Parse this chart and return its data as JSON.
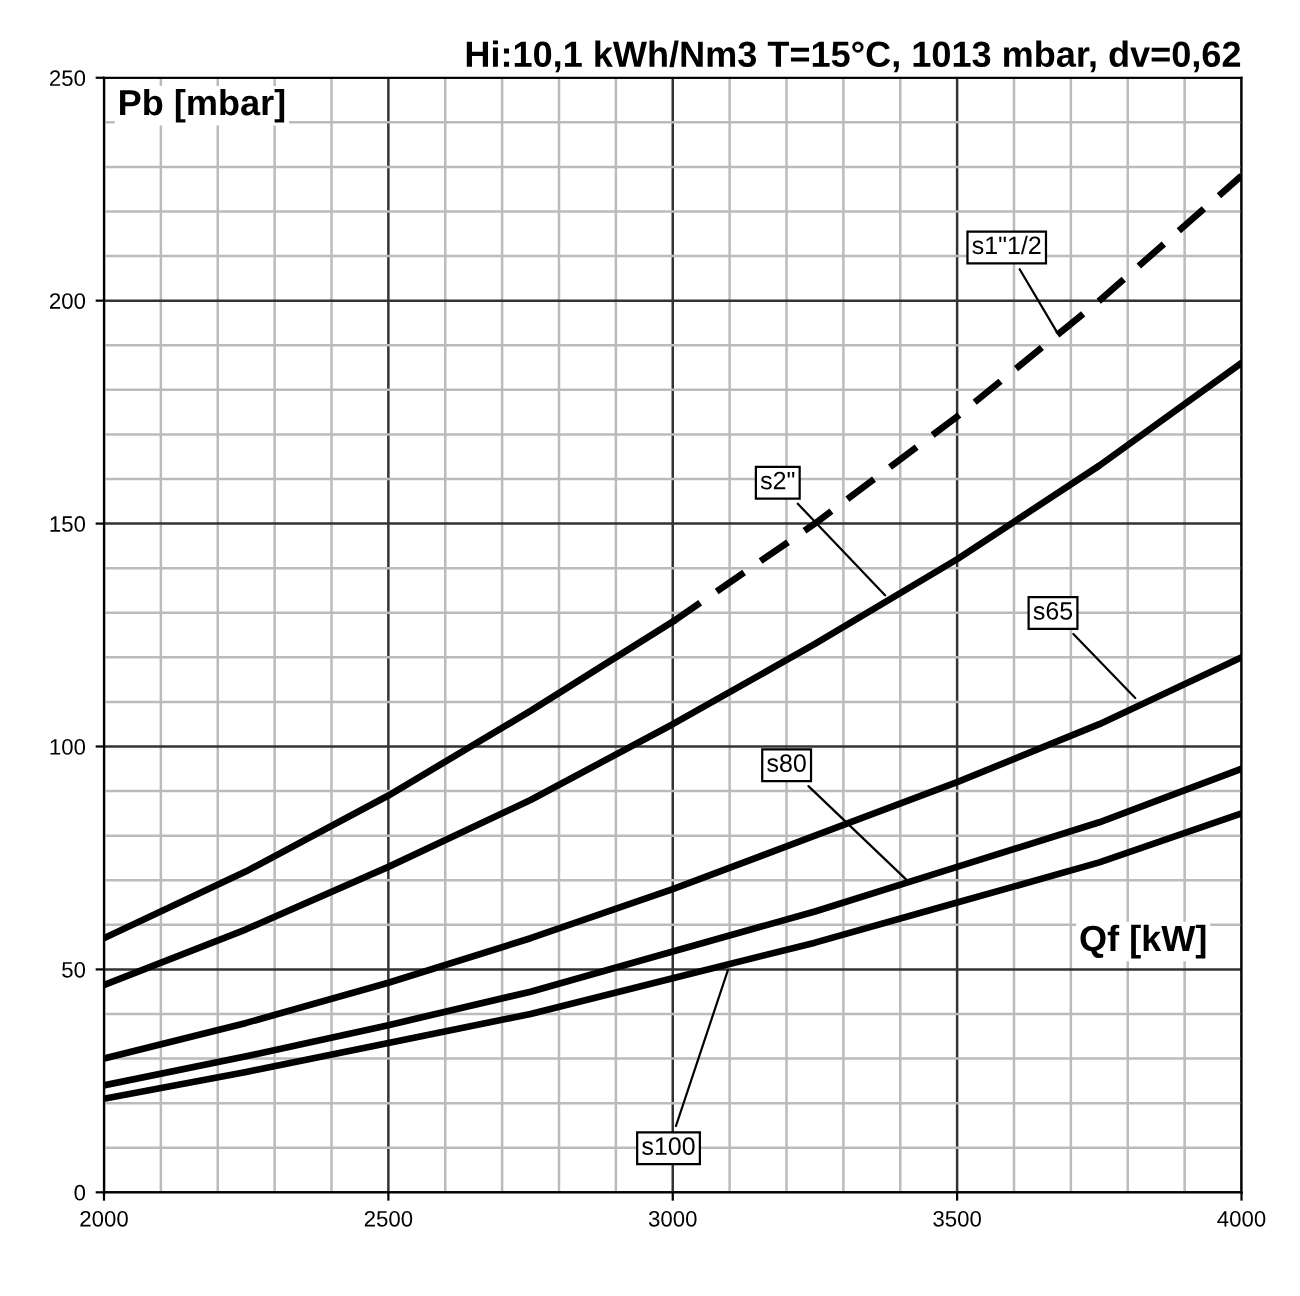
{
  "chart_data": {
    "type": "line",
    "title": "Hi:10,1 kWh/Nm3 T=15°C, 1013 mbar, dv=0,62",
    "xlabel": "Qf [kW]",
    "ylabel": "Pb [mbar]",
    "series": [
      {
        "color": "#000000",
        "line_style": "solid",
        "x": [
          2000,
          2250,
          2500,
          2750,
          3000
        ],
        "values": [
          57,
          72,
          89,
          108,
          128
        ]
      },
      {
        "color": "#000000",
        "line_style": "dashed",
        "x": [
          3000,
          3250,
          3500,
          3750,
          4000
        ],
        "values": [
          128,
          150,
          174,
          200,
          228
        ]
      },
      {
        "color": "#000000",
        "line_style": "solid",
        "x": [
          2000,
          2250,
          2500,
          2750,
          3000,
          3250,
          3500,
          3750,
          4000
        ],
        "values": [
          46.5,
          59,
          73,
          88,
          105,
          123,
          142,
          163,
          186
        ]
      },
      {
        "color": "#000000",
        "line_style": "solid",
        "x": [
          2000,
          2250,
          2500,
          2750,
          3000,
          3250,
          3500,
          3750,
          4000
        ],
        "values": [
          30,
          38,
          47,
          57,
          68,
          80,
          92,
          105,
          120
        ]
      },
      {
        "color": "#000000",
        "line_style": "solid",
        "x": [
          2000,
          2250,
          2500,
          2750,
          3000,
          3250,
          3500,
          3750,
          4000
        ],
        "values": [
          24,
          30.5,
          37.5,
          45,
          54,
          63,
          73,
          83,
          95
        ]
      },
      {
        "color": "#000000",
        "line_style": "solid",
        "x": [
          2000,
          2250,
          2500,
          2750,
          3000,
          3250,
          3500,
          3750,
          4000
        ],
        "values": [
          21,
          27,
          33.5,
          40,
          48,
          56,
          65,
          74,
          85
        ]
      }
    ],
    "annotations": [
      {
        "text": "s1\"1/2",
        "x": 3680,
        "y": 192
      },
      {
        "text": "s2\"",
        "x": 3380,
        "y": 133
      },
      {
        "text": "s65",
        "x": 3820,
        "y": 110
      },
      {
        "text": "s80",
        "x": 3420,
        "y": 69
      },
      {
        "text": "s100",
        "x": 3100,
        "y": 51
      }
    ],
    "xlim": [
      2000,
      4000
    ],
    "xticks": [
      2000,
      2500,
      3000,
      3500,
      4000
    ],
    "ylim": [
      0,
      250
    ],
    "yticks": [
      0,
      50,
      100,
      150,
      200,
      250
    ],
    "grid": true,
    "marker": "none"
  }
}
